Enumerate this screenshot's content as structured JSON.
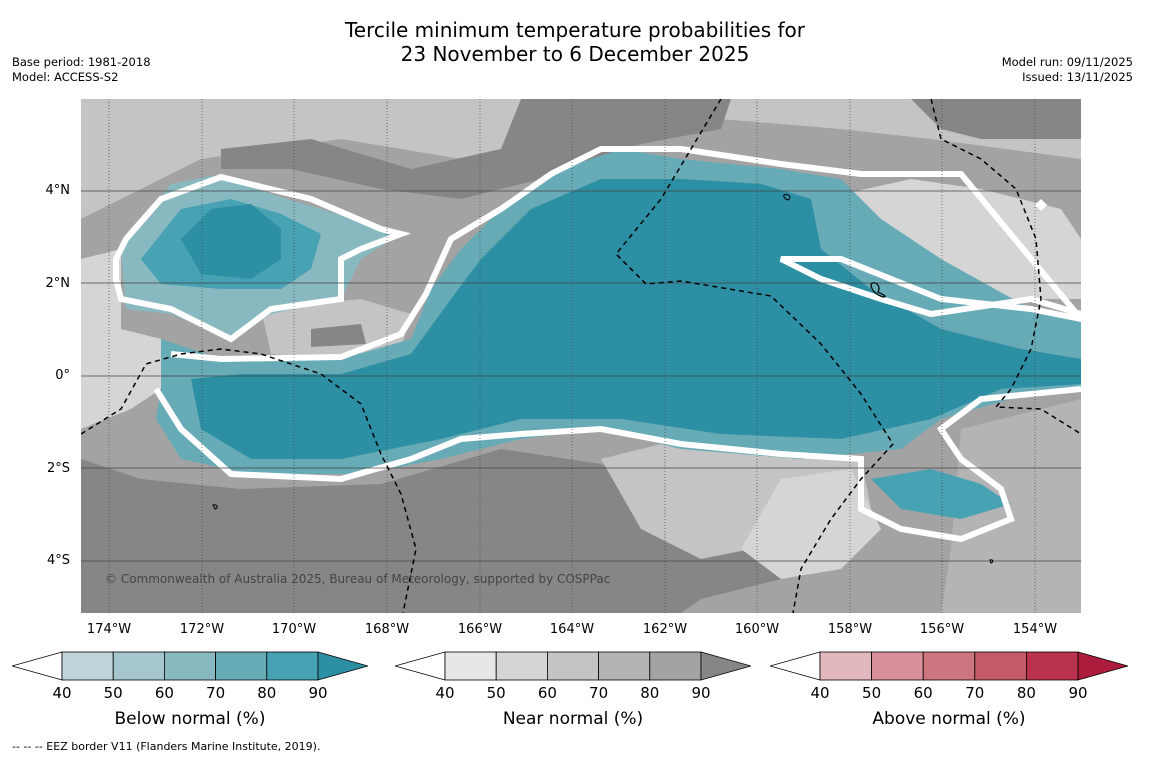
{
  "title": {
    "line1": "Tercile minimum temperature probabilities for",
    "line2": "23 November to 6 December 2025"
  },
  "meta": {
    "base_period": "Base period: 1981-2018",
    "model": "Model: ACCESS-S2",
    "model_run": "Model run: 09/11/2025",
    "issued": "Issued: 13/11/2025"
  },
  "map": {
    "lat_labels": [
      "4°N",
      "2°N",
      "0°",
      "2°S",
      "4°S"
    ],
    "lon_labels": [
      "174°W",
      "172°W",
      "170°W",
      "168°W",
      "166°W",
      "164°W",
      "162°W",
      "160°W",
      "158°W",
      "156°W",
      "154°W"
    ],
    "copyright": "© Commonwealth of Australia 2025, Bureau of Meteorology, supported by COSPPac"
  },
  "colorbars": [
    {
      "title": "Below normal (%)",
      "ticks": [
        "40",
        "50",
        "60",
        "70",
        "80",
        "90"
      ],
      "colors": [
        "#ffffff",
        "#bdd4da",
        "#a4c6cc",
        "#88b8c0",
        "#67abb7",
        "#47a2b3",
        "#2d8fa3"
      ]
    },
    {
      "title": "Near normal (%)",
      "ticks": [
        "40",
        "50",
        "60",
        "70",
        "80",
        "90"
      ],
      "colors": [
        "#ffffff",
        "#e7e7e7",
        "#d5d5d5",
        "#c4c4c4",
        "#b4b4b4",
        "#a3a3a3",
        "#868686"
      ]
    },
    {
      "title": "Above normal (%)",
      "ticks": [
        "40",
        "50",
        "60",
        "70",
        "80",
        "90"
      ],
      "colors": [
        "#ffffff",
        "#e2b7be",
        "#d8919a",
        "#cd7680",
        "#c45a68",
        "#ba334e",
        "#ad1c3c"
      ]
    }
  ],
  "footer": "--  --  -- EEZ border V11 (Flanders Marine Institute, 2019)."
}
